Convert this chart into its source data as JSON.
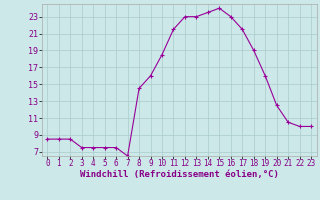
{
  "x": [
    0,
    1,
    2,
    3,
    4,
    5,
    6,
    7,
    8,
    9,
    10,
    11,
    12,
    13,
    14,
    15,
    16,
    17,
    18,
    19,
    20,
    21,
    22,
    23
  ],
  "y": [
    8.5,
    8.5,
    8.5,
    7.5,
    7.5,
    7.5,
    7.5,
    6.5,
    14.5,
    16,
    18.5,
    21.5,
    23,
    23,
    23.5,
    24,
    23,
    21.5,
    19,
    16,
    12.5,
    10.5,
    10,
    10
  ],
  "line_color": "#990099",
  "marker": "+",
  "marker_size": 3,
  "marker_lw": 0.8,
  "bg_color": "#cce8e8",
  "grid_color": "#aacccc",
  "xlabel": "Windchill (Refroidissement éolien,°C)",
  "ylabel": "",
  "xlim": [
    -0.5,
    23.5
  ],
  "ylim": [
    6.5,
    24.5
  ],
  "yticks": [
    7,
    9,
    11,
    13,
    15,
    17,
    19,
    21,
    23
  ],
  "xticks": [
    0,
    1,
    2,
    3,
    4,
    5,
    6,
    7,
    8,
    9,
    10,
    11,
    12,
    13,
    14,
    15,
    16,
    17,
    18,
    19,
    20,
    21,
    22,
    23
  ],
  "tick_color": "#880088",
  "xlabel_fontsize": 6.5,
  "xtick_fontsize": 5.5,
  "ytick_fontsize": 6.0
}
